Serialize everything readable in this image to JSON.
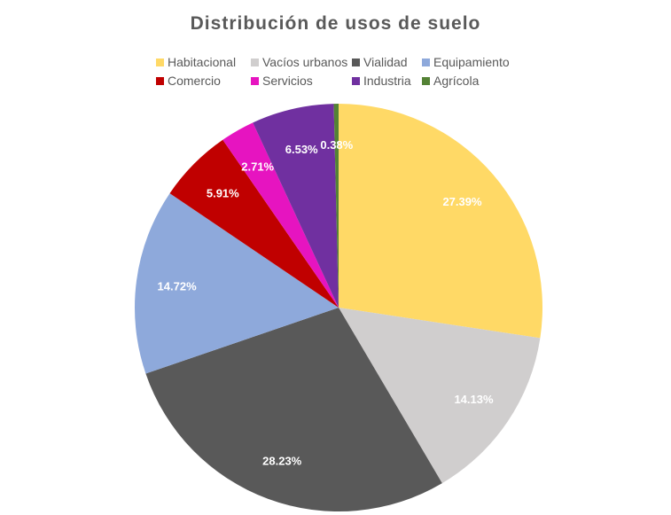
{
  "chart_data": {
    "type": "pie",
    "title": "Distribución de usos de suelo",
    "legend_position": "top",
    "categories": [
      "Habitacional",
      "Vacíos urbanos",
      "Vialidad",
      "Equipamiento",
      "Comercio",
      "Servicios",
      "Industria",
      "Agrícola"
    ],
    "values": [
      27.39,
      14.13,
      28.23,
      14.72,
      5.91,
      2.71,
      6.53,
      0.38
    ],
    "labels": [
      "27.39%",
      "14.13%",
      "28.23%",
      "14.72%",
      "5.91%",
      "2.71%",
      "6.53%",
      "0.38%"
    ],
    "colors": [
      "#FFD966",
      "#D0CECE",
      "#595959",
      "#8EA9DB",
      "#C00000",
      "#E614C0",
      "#7030A0",
      "#548235"
    ]
  }
}
